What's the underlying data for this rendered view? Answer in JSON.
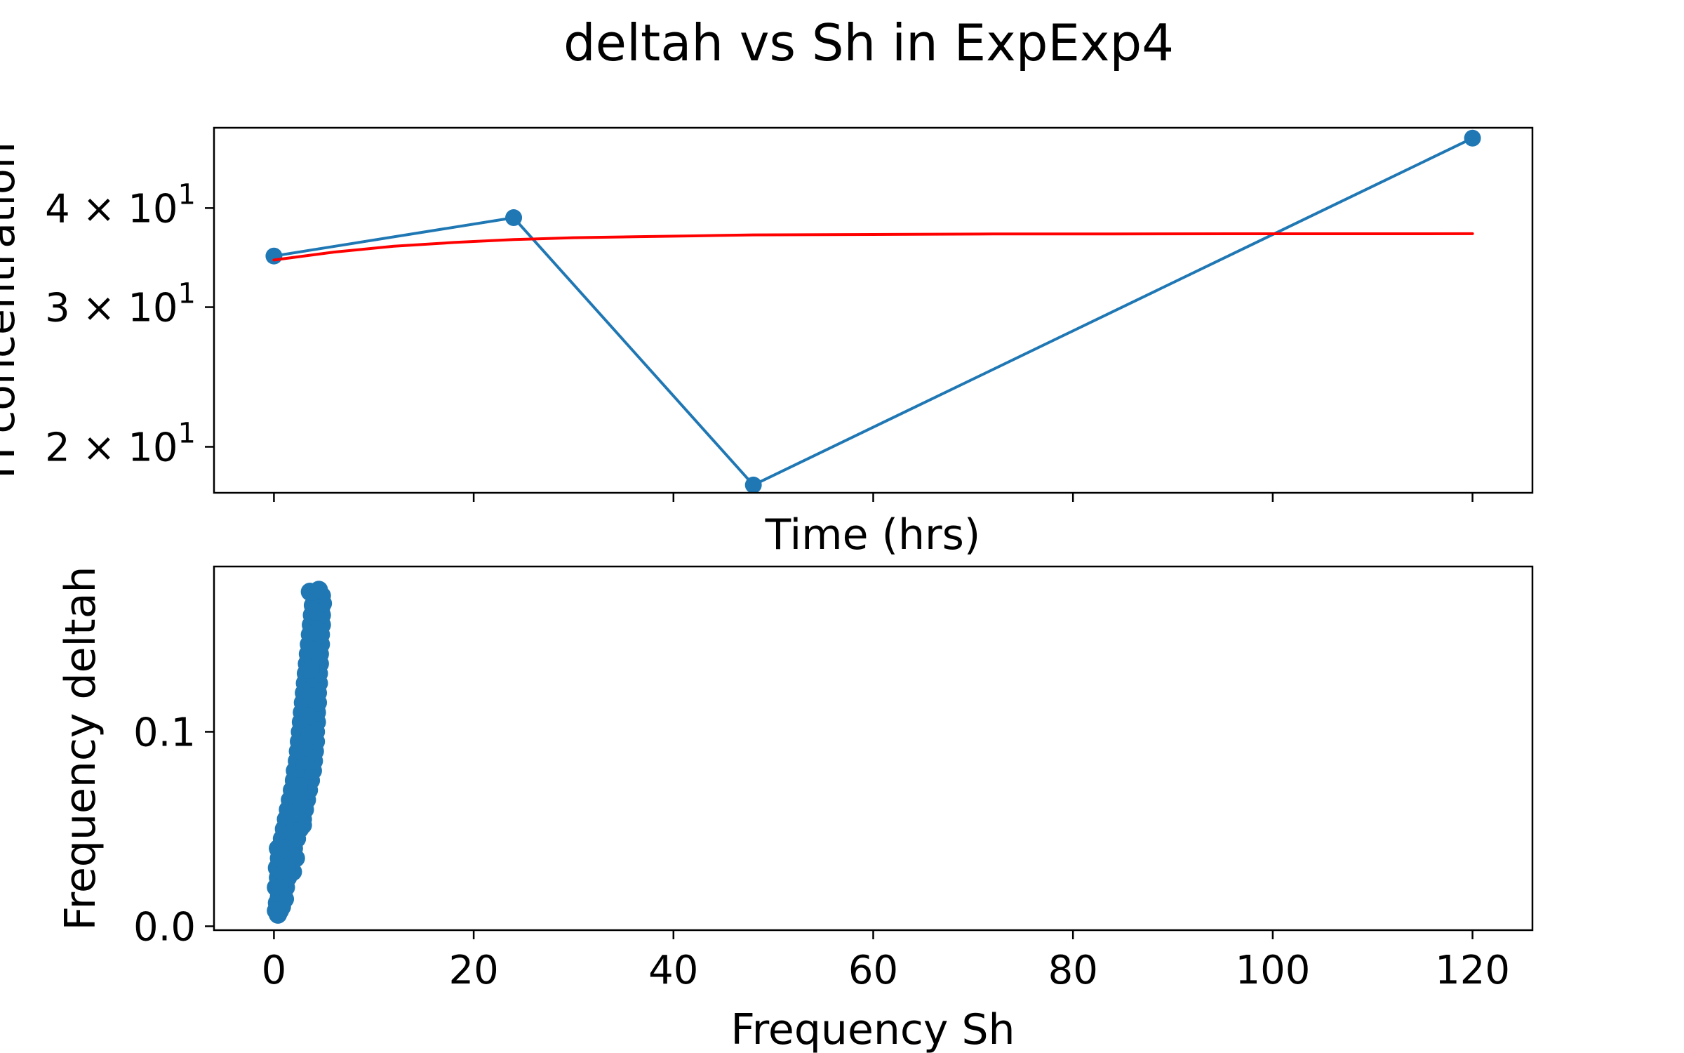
{
  "title": "deltah vs Sh in ExpExp4",
  "chart_data": [
    {
      "type": "line",
      "title": "",
      "xlabel": "Time (hrs)",
      "ylabel": "H concentration",
      "yscale": "log",
      "xlim": [
        -6,
        126
      ],
      "ylim": [
        17.5,
        50.5
      ],
      "x_ticks": [
        0,
        20,
        40,
        60,
        80,
        100,
        120
      ],
      "x_tick_labels_visible": false,
      "y_ticks": [
        {
          "value": 20,
          "mantissa": "2",
          "base": "10",
          "exp": "1"
        },
        {
          "value": 30,
          "mantissa": "3",
          "base": "10",
          "exp": "1"
        },
        {
          "value": 40,
          "mantissa": "4",
          "base": "10",
          "exp": "1"
        }
      ],
      "grid": false,
      "series": [
        {
          "name": "",
          "color": "#1f77b4",
          "marker": "circle",
          "x": [
            0,
            24,
            48,
            120
          ],
          "y": [
            34.8,
            38.9,
            17.9,
            49.0
          ]
        },
        {
          "name": "",
          "color": "#ff0000",
          "marker": "none",
          "x": [
            0,
            6,
            12,
            18,
            24,
            30,
            36,
            42,
            48,
            60,
            72,
            84,
            96,
            108,
            120
          ],
          "y": [
            34.4,
            35.2,
            35.8,
            36.2,
            36.5,
            36.7,
            36.8,
            36.9,
            37.0,
            37.05,
            37.1,
            37.1,
            37.12,
            37.12,
            37.13
          ]
        }
      ]
    },
    {
      "type": "scatter",
      "title": "",
      "xlabel": "Frequency Sh",
      "ylabel": "Frequency deltah",
      "xlim": [
        -6,
        126
      ],
      "ylim": [
        -0.002,
        0.185
      ],
      "x_ticks": [
        0,
        20,
        40,
        60,
        80,
        100,
        120
      ],
      "x_tick_labels": [
        "0",
        "20",
        "40",
        "60",
        "80",
        "100",
        "120"
      ],
      "y_ticks": [
        0.0,
        0.1
      ],
      "y_tick_labels": [
        "0.0",
        "0.1"
      ],
      "grid": false,
      "series": [
        {
          "name": "",
          "color": "#1f77b4",
          "marker": "circle",
          "points": [
            [
              0.4,
              0.006
            ],
            [
              0.6,
              0.008
            ],
            [
              0.3,
              0.012
            ],
            [
              0.8,
              0.01
            ],
            [
              0.5,
              0.015
            ],
            [
              0.2,
              0.02
            ],
            [
              0.9,
              0.018
            ],
            [
              1.1,
              0.014
            ],
            [
              0.4,
              0.025
            ],
            [
              0.7,
              0.022
            ],
            [
              1.2,
              0.02
            ],
            [
              0.3,
              0.03
            ],
            [
              0.9,
              0.028
            ],
            [
              1.4,
              0.025
            ],
            [
              0.5,
              0.035
            ],
            [
              1.1,
              0.033
            ],
            [
              1.6,
              0.03
            ],
            [
              0.4,
              0.04
            ],
            [
              1.3,
              0.038
            ],
            [
              1.8,
              0.035
            ],
            [
              0.8,
              0.045
            ],
            [
              1.5,
              0.043
            ],
            [
              2.0,
              0.04
            ],
            [
              1.0,
              0.05
            ],
            [
              1.7,
              0.048
            ],
            [
              2.3,
              0.045
            ],
            [
              1.2,
              0.055
            ],
            [
              2.0,
              0.053
            ],
            [
              2.6,
              0.05
            ],
            [
              1.4,
              0.06
            ],
            [
              2.2,
              0.058
            ],
            [
              2.9,
              0.055
            ],
            [
              1.6,
              0.065
            ],
            [
              2.4,
              0.063
            ],
            [
              3.1,
              0.06
            ],
            [
              1.8,
              0.07
            ],
            [
              2.6,
              0.068
            ],
            [
              3.3,
              0.065
            ],
            [
              2.0,
              0.075
            ],
            [
              2.8,
              0.073
            ],
            [
              3.5,
              0.07
            ],
            [
              2.1,
              0.08
            ],
            [
              3.0,
              0.078
            ],
            [
              3.7,
              0.075
            ],
            [
              2.3,
              0.085
            ],
            [
              3.1,
              0.083
            ],
            [
              3.9,
              0.08
            ],
            [
              2.4,
              0.09
            ],
            [
              3.3,
              0.088
            ],
            [
              4.0,
              0.085
            ],
            [
              2.5,
              0.095
            ],
            [
              3.4,
              0.093
            ],
            [
              4.1,
              0.09
            ],
            [
              2.6,
              0.1
            ],
            [
              3.5,
              0.098
            ],
            [
              4.2,
              0.095
            ],
            [
              2.7,
              0.105
            ],
            [
              3.6,
              0.103
            ],
            [
              4.2,
              0.1
            ],
            [
              2.8,
              0.11
            ],
            [
              3.7,
              0.108
            ],
            [
              4.3,
              0.105
            ],
            [
              2.9,
              0.115
            ],
            [
              3.8,
              0.113
            ],
            [
              4.3,
              0.11
            ],
            [
              3.0,
              0.12
            ],
            [
              3.9,
              0.118
            ],
            [
              4.4,
              0.115
            ],
            [
              3.1,
              0.125
            ],
            [
              4.0,
              0.123
            ],
            [
              4.4,
              0.12
            ],
            [
              3.2,
              0.13
            ],
            [
              4.1,
              0.128
            ],
            [
              4.5,
              0.125
            ],
            [
              3.3,
              0.135
            ],
            [
              4.1,
              0.133
            ],
            [
              4.5,
              0.13
            ],
            [
              3.4,
              0.14
            ],
            [
              4.2,
              0.138
            ],
            [
              4.6,
              0.135
            ],
            [
              3.5,
              0.145
            ],
            [
              4.3,
              0.143
            ],
            [
              4.6,
              0.14
            ],
            [
              3.6,
              0.15
            ],
            [
              4.4,
              0.148
            ],
            [
              4.7,
              0.145
            ],
            [
              3.7,
              0.155
            ],
            [
              4.5,
              0.153
            ],
            [
              4.7,
              0.15
            ],
            [
              3.8,
              0.16
            ],
            [
              4.6,
              0.158
            ],
            [
              4.8,
              0.155
            ],
            [
              3.9,
              0.165
            ],
            [
              4.7,
              0.163
            ],
            [
              4.8,
              0.16
            ],
            [
              4.2,
              0.168
            ],
            [
              4.9,
              0.166
            ],
            [
              4.3,
              0.171
            ],
            [
              4.8,
              0.17
            ],
            [
              4.5,
              0.173
            ],
            [
              3.6,
              0.172
            ],
            [
              1.5,
              0.045
            ],
            [
              2.7,
              0.062
            ],
            [
              3.2,
              0.085
            ],
            [
              2.2,
              0.035
            ],
            [
              3.6,
              0.098
            ],
            [
              2.9,
              0.052
            ],
            [
              1.9,
              0.028
            ],
            [
              3.8,
              0.118
            ],
            [
              4.0,
              0.142
            ],
            [
              2.5,
              0.072
            ],
            [
              3.4,
              0.108
            ],
            [
              1.3,
              0.03
            ],
            [
              0.6,
              0.02
            ],
            [
              0.2,
              0.008
            ],
            [
              4.4,
              0.152
            ],
            [
              4.1,
              0.162
            ],
            [
              3.0,
              0.092
            ],
            [
              2.1,
              0.058
            ],
            [
              3.7,
              0.132
            ],
            [
              1.0,
              0.04
            ]
          ]
        }
      ]
    }
  ]
}
